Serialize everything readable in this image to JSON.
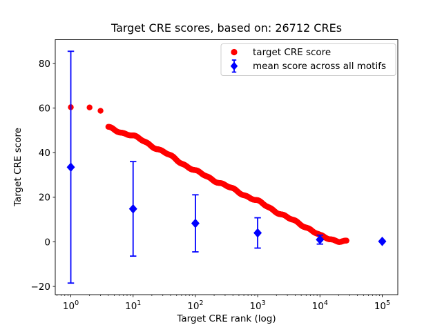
{
  "chart_data": {
    "type": "scatter",
    "title": "Target CRE scores, based on: 26712 CREs",
    "xlabel": "Target CRE rank (log)",
    "ylabel": "Target CRE score",
    "n_cres": 26712,
    "x_axis": {
      "scale": "log",
      "lim_log": [
        -0.25,
        5.25
      ],
      "major_tick_values": [
        1,
        10,
        100,
        1000,
        10000,
        100000
      ],
      "major_tick_exponents": [
        0,
        1,
        2,
        3,
        4,
        5
      ],
      "tick_base_label": "10",
      "minor_ticks": "log decades 2-9",
      "grid": false
    },
    "y_axis": {
      "lim": [
        -23.7,
        90.7
      ],
      "ticks": [
        {
          "v": -20,
          "label": "−20"
        },
        {
          "v": 0,
          "label": "0"
        },
        {
          "v": 20,
          "label": "20"
        },
        {
          "v": 40,
          "label": "40"
        },
        {
          "v": 60,
          "label": "60"
        },
        {
          "v": 80,
          "label": "80"
        }
      ],
      "grid": false
    },
    "legend": {
      "position": "upper right",
      "border_color": "#cccccc",
      "background": "#ffffff"
    },
    "series": [
      {
        "name": "target-cre-score",
        "label": "target CRE score",
        "marker": "circle",
        "color": "#ff0000",
        "points_rank_score": [
          [
            1,
            60.4
          ],
          [
            2,
            60.3
          ],
          [
            3,
            58.8
          ],
          [
            4,
            51.2
          ],
          [
            5,
            50.2
          ],
          [
            6,
            49.4
          ],
          [
            7,
            48.9
          ],
          [
            8,
            48.5
          ],
          [
            9,
            48.1
          ],
          [
            10,
            47.6
          ],
          [
            18,
            43.8
          ],
          [
            32,
            40.1
          ],
          [
            56,
            35.9
          ],
          [
            100,
            31.8
          ],
          [
            178,
            28.4
          ],
          [
            316,
            25.0
          ],
          [
            562,
            21.6
          ],
          [
            1000,
            18.2
          ],
          [
            1778,
            14.4
          ],
          [
            3162,
            10.5
          ],
          [
            5012,
            7.8
          ],
          [
            7079,
            5.6
          ],
          [
            10000,
            2.6
          ],
          [
            14125,
            1.3
          ],
          [
            19953,
            0.5
          ],
          [
            26712,
            0.15
          ]
        ]
      },
      {
        "name": "mean-score-all-motifs",
        "label": "mean score across all motifs",
        "marker": "diamond",
        "color": "#0000ff",
        "points": [
          {
            "rank": 1,
            "mean": 33.5,
            "err": 52.0
          },
          {
            "rank": 10,
            "mean": 14.8,
            "err": 21.2
          },
          {
            "rank": 100,
            "mean": 8.3,
            "err": 12.8
          },
          {
            "rank": 1000,
            "mean": 4.0,
            "err": 6.8
          },
          {
            "rank": 10000,
            "mean": 1.0,
            "err": 2.0
          },
          {
            "rank": 100000,
            "mean": 0.2,
            "err": 0.0
          }
        ]
      }
    ]
  },
  "colors": {
    "red": "#ff0000",
    "blue": "#0000ff",
    "axis": "#000000",
    "legend_border": "#cccccc",
    "background": "#ffffff"
  }
}
